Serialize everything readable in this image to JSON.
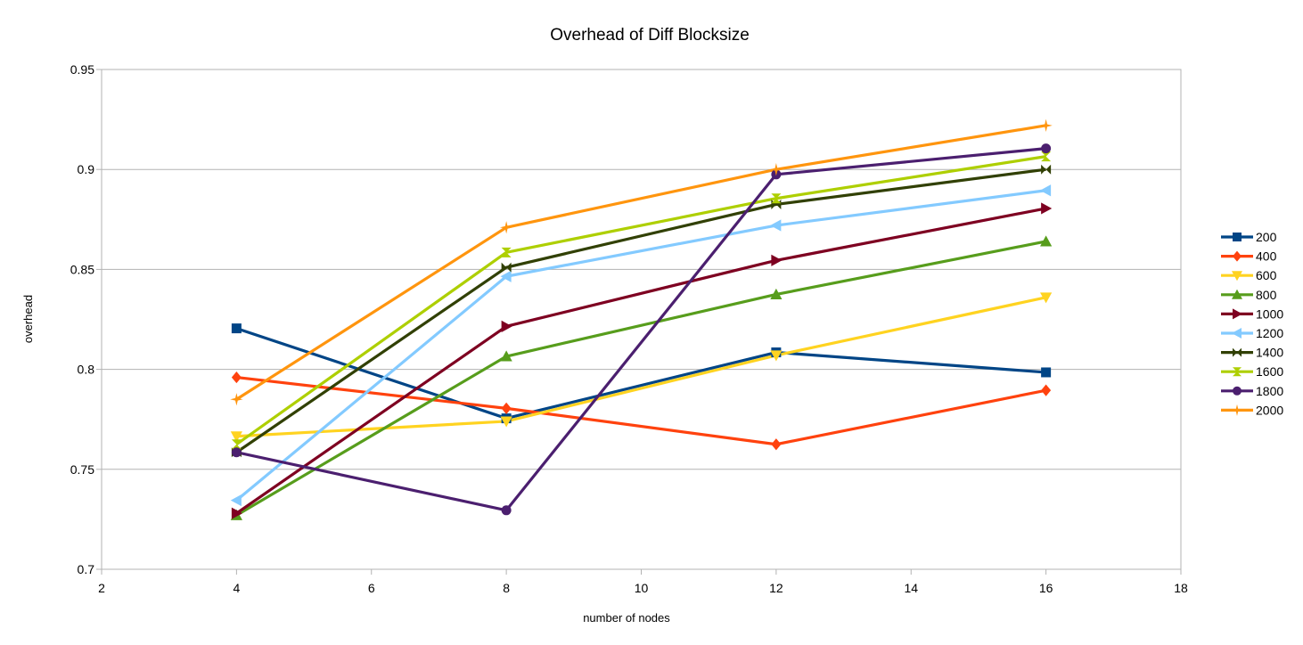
{
  "chart_data": {
    "type": "line",
    "title": "Overhead of Diff Blocksize",
    "xlabel": "number of nodes",
    "ylabel": "overhead",
    "xlim": [
      2,
      18
    ],
    "ylim": [
      0.7,
      0.95
    ],
    "xticks": [
      2,
      4,
      6,
      8,
      10,
      12,
      14,
      16,
      18
    ],
    "xtick_labels": [
      "2",
      "4",
      "6",
      "8",
      "10",
      "12",
      "14",
      "16",
      "18"
    ],
    "yticks": [
      0.7,
      0.75,
      0.8,
      0.85,
      0.9,
      0.95
    ],
    "ytick_labels": [
      "0.7",
      "0.75",
      "0.8",
      "0.85",
      "0.9",
      "0.95"
    ],
    "grid": "horizontal",
    "legend_position": "right",
    "x": [
      4,
      8,
      12,
      16
    ],
    "series": [
      {
        "name": "200",
        "color": "#004586",
        "marker": "square",
        "values": [
          0.8205,
          0.7755,
          0.8085,
          0.7985
        ]
      },
      {
        "name": "400",
        "color": "#ff420e",
        "marker": "diamond",
        "values": [
          0.796,
          0.7805,
          0.7625,
          0.7895
        ]
      },
      {
        "name": "600",
        "color": "#ffd320",
        "marker": "triangle-down",
        "values": [
          0.7665,
          0.774,
          0.807,
          0.836
        ]
      },
      {
        "name": "800",
        "color": "#579d1c",
        "marker": "triangle-up",
        "values": [
          0.727,
          0.8065,
          0.8375,
          0.864
        ]
      },
      {
        "name": "1000",
        "color": "#7e0021",
        "marker": "triangle-right",
        "values": [
          0.728,
          0.8215,
          0.8545,
          0.8805
        ]
      },
      {
        "name": "1200",
        "color": "#83caff",
        "marker": "triangle-left",
        "values": [
          0.7345,
          0.8465,
          0.872,
          0.8895
        ]
      },
      {
        "name": "1400",
        "color": "#314004",
        "marker": "bowtie",
        "values": [
          0.7585,
          0.851,
          0.8825,
          0.9
        ]
      },
      {
        "name": "1600",
        "color": "#aecf00",
        "marker": "hourglass",
        "values": [
          0.7625,
          0.8585,
          0.8855,
          0.9065
        ]
      },
      {
        "name": "1800",
        "color": "#4b1f6f",
        "marker": "circle",
        "values": [
          0.7585,
          0.7295,
          0.8975,
          0.9105
        ]
      },
      {
        "name": "2000",
        "color": "#ff950e",
        "marker": "star",
        "values": [
          0.785,
          0.871,
          0.9,
          0.922
        ]
      }
    ]
  }
}
